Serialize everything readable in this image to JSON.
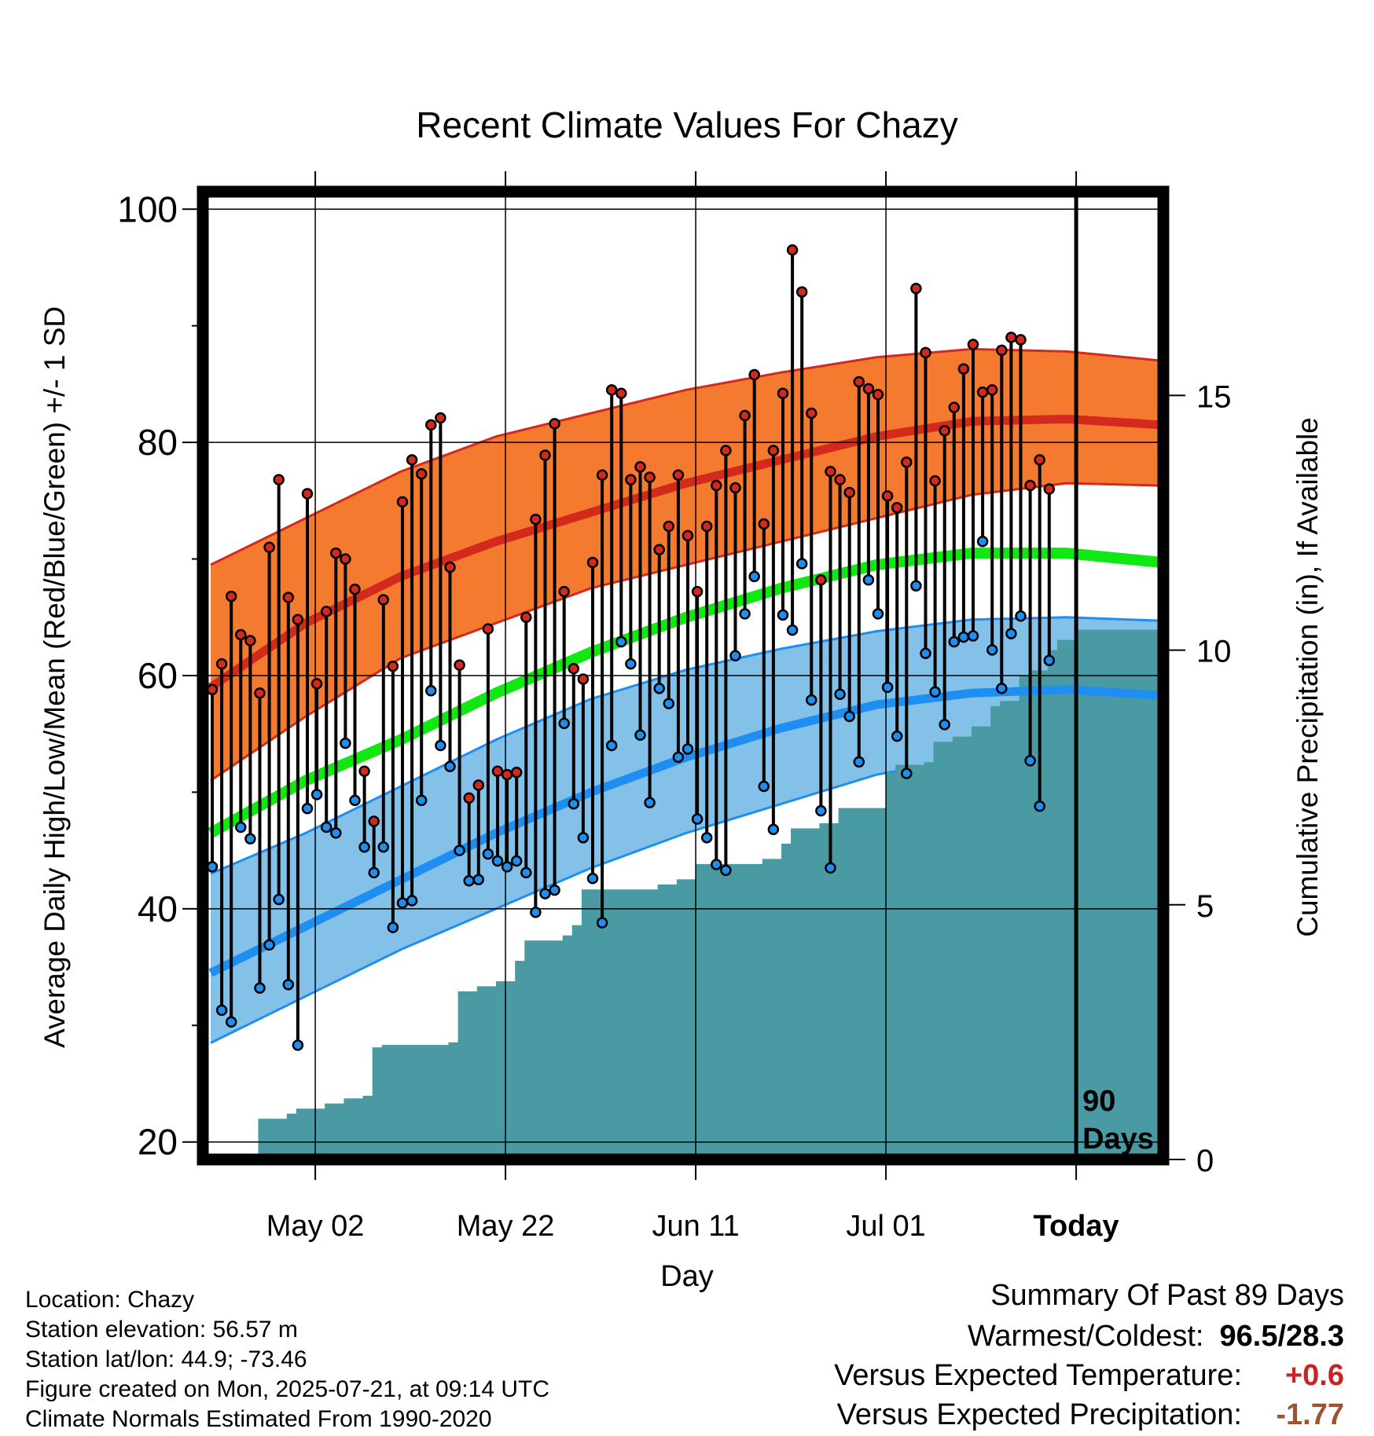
{
  "title": "Recent Climate Values For Chazy",
  "chart_data": {
    "type": "line",
    "title": "Recent Climate Values For Chazy",
    "xlabel": "Day",
    "ylabel": "Average Daily High/Low/Mean (Red/Blue/Green) +/- 1 SD",
    "y2label": "Cumulative Precipitation (in), If Available",
    "ylim": [
      18.5,
      101.5
    ],
    "y2lim": [
      0,
      19
    ],
    "yticks": [
      20,
      40,
      60,
      80,
      100
    ],
    "y2ticks": [
      0,
      5,
      10,
      15
    ],
    "xlim": [
      0,
      100
    ],
    "xticks": [
      {
        "day": 11,
        "label": "May 02"
      },
      {
        "day": 31,
        "label": "May 22"
      },
      {
        "day": 51,
        "label": "Jun 11"
      },
      {
        "day": 71,
        "label": "Jul 01"
      },
      {
        "day": 91,
        "label": "Today"
      }
    ],
    "today_day": 91,
    "window_label": [
      "90",
      "Days"
    ],
    "normals": {
      "day": [
        0,
        10,
        20,
        30,
        40,
        50,
        60,
        70,
        80,
        90,
        100
      ],
      "high_plus_sd": [
        69.5,
        73.5,
        77.5,
        80.5,
        82.5,
        84.5,
        86.0,
        87.3,
        88.0,
        87.8,
        87.0
      ],
      "high": [
        59.0,
        64.5,
        68.5,
        71.5,
        74.0,
        76.5,
        78.5,
        80.5,
        81.8,
        82.0,
        81.5
      ],
      "high_minus_sd": [
        51.0,
        56.5,
        61.5,
        64.5,
        67.5,
        69.5,
        71.5,
        73.5,
        75.5,
        76.5,
        76.3
      ],
      "mean": [
        46.5,
        51.0,
        54.5,
        58.5,
        62.0,
        65.0,
        67.5,
        69.5,
        70.5,
        70.5,
        69.7
      ],
      "low_plus_sd": [
        43.0,
        46.5,
        50.5,
        54.5,
        58.0,
        60.5,
        62.3,
        63.8,
        64.8,
        65.0,
        64.7
      ],
      "low": [
        34.5,
        38.5,
        42.5,
        46.5,
        50.0,
        53.0,
        55.5,
        57.5,
        58.5,
        58.8,
        58.3
      ],
      "low_minus_sd": [
        28.5,
        32.5,
        36.5,
        40.0,
        43.5,
        46.5,
        49.0,
        51.5,
        53.0,
        53.2,
        52.8
      ]
    },
    "observed": {
      "day": [
        0,
        1,
        2,
        3,
        4,
        5,
        6,
        7,
        8,
        9,
        10,
        11,
        12,
        13,
        14,
        15,
        16,
        17,
        18,
        19,
        20,
        21,
        22,
        23,
        24,
        25,
        26,
        27,
        28,
        29,
        30,
        31,
        32,
        33,
        34,
        35,
        36,
        37,
        38,
        39,
        40,
        41,
        42,
        43,
        44,
        45,
        46,
        47,
        48,
        49,
        50,
        51,
        52,
        53,
        54,
        55,
        56,
        57,
        58,
        59,
        60,
        61,
        62,
        63,
        64,
        65,
        66,
        67,
        68,
        69,
        70,
        71,
        72,
        73,
        74,
        75,
        76,
        77,
        78,
        79,
        80,
        81,
        82,
        83,
        84,
        85,
        86,
        87,
        88,
        89,
        90
      ],
      "high": [
        58.8,
        61.0,
        66.8,
        63.5,
        63.0,
        58.5,
        71.0,
        76.8,
        66.7,
        64.8,
        75.6,
        59.3,
        65.5,
        70.5,
        70.0,
        67.4,
        51.8,
        47.5,
        66.5,
        60.8,
        74.9,
        78.5,
        77.3,
        81.5,
        82.1,
        69.3,
        60.9,
        49.5,
        50.6,
        64.0,
        51.8,
        51.5,
        51.7,
        65.0,
        73.4,
        78.9,
        81.6,
        67.2,
        60.6,
        59.7,
        69.7,
        77.2,
        84.5,
        84.2,
        76.8,
        77.9,
        77.0,
        70.8,
        72.8,
        77.2,
        72.0,
        67.2,
        72.8,
        76.3,
        79.3,
        76.1,
        82.3,
        85.8,
        73.0,
        79.3,
        84.2,
        96.5,
        92.9,
        82.5,
        68.2,
        77.5,
        76.8,
        75.7,
        85.2,
        84.6,
        84.1,
        75.4,
        74.4,
        78.3,
        93.2,
        87.7,
        76.7,
        81.0,
        83.0,
        86.3,
        88.4,
        84.3,
        84.5,
        87.9,
        89.0,
        88.8,
        76.3,
        78.5,
        76.0
      ],
      "low": [
        43.6,
        31.3,
        30.3,
        47.0,
        46.0,
        33.2,
        36.9,
        40.8,
        33.5,
        28.3,
        48.6,
        49.8,
        47.0,
        46.5,
        54.2,
        49.3,
        45.3,
        43.1,
        45.3,
        38.4,
        40.5,
        40.7,
        49.3,
        58.7,
        54.0,
        52.2,
        45.0,
        42.4,
        42.5,
        44.7,
        44.1,
        43.6,
        44.1,
        43.1,
        39.7,
        41.3,
        41.6,
        55.9,
        49.0,
        46.1,
        42.6,
        38.8,
        54.0,
        62.9,
        61.0,
        54.9,
        49.1,
        58.9,
        57.6,
        53.0,
        53.7,
        47.7,
        46.1,
        43.8,
        43.3,
        61.7,
        65.3,
        68.5,
        50.5,
        46.8,
        65.2,
        63.9,
        69.6,
        57.9,
        48.4,
        43.5,
        58.4,
        56.5,
        52.6,
        68.2,
        65.3,
        59.0,
        54.8,
        51.6,
        67.7,
        61.9,
        58.6,
        55.8,
        62.9,
        63.3,
        63.4,
        71.5,
        62.2,
        58.9,
        63.6,
        65.1,
        52.7,
        48.8,
        61.3
      ]
    },
    "precip": {
      "day": [
        4,
        5,
        8,
        9,
        12,
        14,
        16,
        17,
        18,
        25,
        26,
        28,
        30,
        32,
        33,
        37,
        38,
        39,
        47,
        49,
        51,
        58,
        60,
        61,
        64,
        66,
        71,
        72,
        75,
        76,
        78,
        80,
        82,
        83,
        85,
        86,
        88,
        89,
        91
      ],
      "cumulative": [
        0.0,
        0.8,
        0.9,
        1.0,
        1.1,
        1.2,
        1.25,
        2.2,
        2.25,
        2.3,
        3.3,
        3.4,
        3.5,
        3.9,
        4.3,
        4.4,
        4.6,
        5.3,
        5.4,
        5.5,
        5.8,
        5.9,
        6.2,
        6.5,
        6.6,
        6.9,
        7.6,
        7.75,
        7.8,
        8.2,
        8.3,
        8.5,
        8.9,
        9.0,
        9.5,
        9.6,
        10.0,
        10.2,
        10.4
      ]
    }
  },
  "info": {
    "location": "Location: Chazy",
    "elevation": "Station elevation: 56.57 m",
    "latlon": "Station lat/lon: 44.9; -73.46",
    "created": "Figure created on Mon, 2025-07-21, at 09:14 UTC",
    "normals": "Climate Normals Estimated From 1990-2020"
  },
  "summary": {
    "heading": "Summary Of Past 89 Days",
    "warm_cold_label": "Warmest/Coldest:",
    "warm": "96.5",
    "slash": "/",
    "cold": "28.3",
    "temp_label": "Versus Expected Temperature:",
    "temp_value": "+0.6",
    "precip_label": "Versus Expected Precipitation:",
    "precip_value": "-1.77",
    "colors": {
      "warm": "#cc2222",
      "cold": "#000000",
      "temp": "#cc2222",
      "precip": "#a0522d"
    }
  }
}
